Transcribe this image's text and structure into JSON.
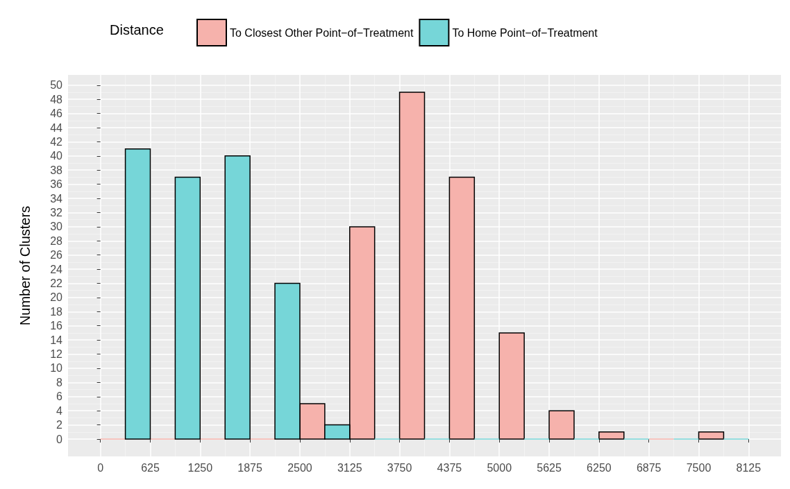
{
  "chart_data": {
    "type": "histogram",
    "ylabel": "Number of Clusters",
    "legend_title": "Distance",
    "legend": "top",
    "bins": [
      0,
      625,
      1250,
      1875,
      2500,
      3125,
      3750,
      4375,
      5000,
      5625,
      6250,
      6875,
      7500,
      8125
    ],
    "series": [
      {
        "name": "To Closest Other Point−of−Treatment",
        "color": "#f6b2ac",
        "values": [
          0,
          0,
          0,
          0,
          5,
          30,
          49,
          37,
          15,
          4,
          1,
          0,
          1
        ]
      },
      {
        "name": "To Home Point−of−Treatment",
        "color": "#76d6d8",
        "values": [
          41,
          37,
          40,
          22,
          2,
          0,
          0,
          0,
          0,
          0,
          0,
          0,
          0
        ]
      }
    ],
    "xlim": [
      -406,
      8531
    ],
    "xticks": [
      0,
      625,
      1250,
      1875,
      2500,
      3125,
      3750,
      4375,
      5000,
      5625,
      6250,
      6875,
      7500,
      8125
    ],
    "ylim": [
      -2.45,
      51.45
    ],
    "yticks": [
      0,
      2,
      4,
      6,
      8,
      10,
      12,
      14,
      16,
      18,
      20,
      22,
      24,
      26,
      28,
      30,
      32,
      34,
      36,
      38,
      40,
      42,
      44,
      46,
      48,
      50
    ],
    "grid": true
  }
}
